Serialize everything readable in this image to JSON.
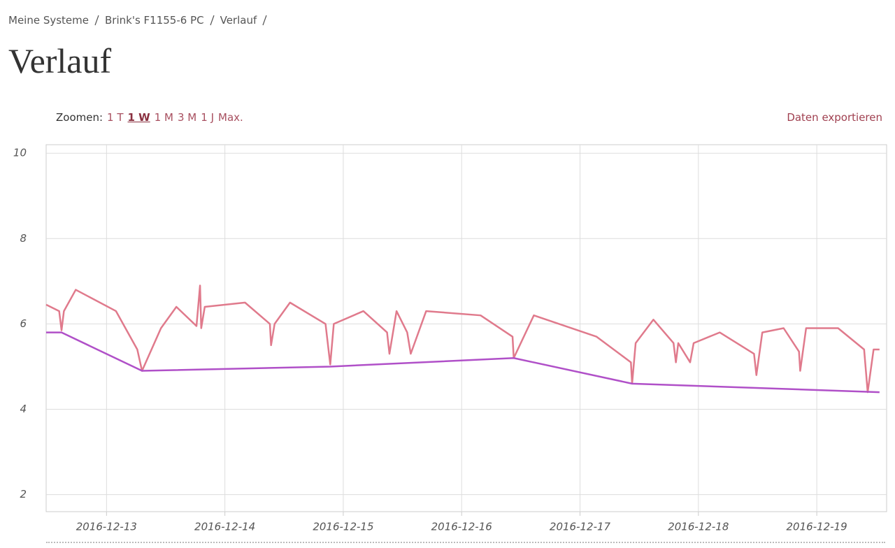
{
  "breadcrumb": [
    "Meine Systeme",
    "Brink's F1155-6 PC",
    "Verlauf"
  ],
  "title": "Verlauf",
  "zoom": {
    "label": "Zoomen:",
    "options": [
      "1 T",
      "1 W",
      "1 M",
      "3 M",
      "1 J",
      "Max."
    ],
    "active": 1
  },
  "export": "Daten exportieren",
  "chart_data": {
    "type": "line",
    "xlim": [
      12.49,
      19.59
    ],
    "xticks": [
      {
        "value": 13,
        "label": "2016-12-13"
      },
      {
        "value": 14,
        "label": "2016-12-14"
      },
      {
        "value": 15,
        "label": "2016-12-15"
      },
      {
        "value": 16,
        "label": "2016-12-16"
      },
      {
        "value": 17,
        "label": "2016-12-17"
      },
      {
        "value": 18,
        "label": "2016-12-18"
      },
      {
        "value": 19,
        "label": "2016-12-19"
      }
    ],
    "ylim": [
      1.6,
      10.2
    ],
    "yticks": [
      2,
      4,
      6,
      8,
      10
    ],
    "grid": true,
    "series": [
      {
        "color": "#e07a8c",
        "x": [
          12.49,
          12.6,
          12.62,
          12.64,
          12.74,
          13.08,
          13.26,
          13.3,
          13.46,
          13.59,
          13.76,
          13.79,
          13.8,
          13.83,
          14.17,
          14.38,
          14.39,
          14.42,
          14.55,
          14.85,
          14.89,
          14.92,
          15.17,
          15.37,
          15.39,
          15.45,
          15.54,
          15.57,
          15.7,
          16.16,
          16.43,
          16.44,
          16.61,
          17.14,
          17.43,
          17.44,
          17.47,
          17.62,
          17.79,
          17.81,
          17.83,
          17.93,
          17.96,
          18.18,
          18.47,
          18.49,
          18.54,
          18.72,
          18.85,
          18.86,
          18.91,
          19.18,
          19.4,
          19.43,
          19.48,
          19.53
        ],
        "values": [
          6.45,
          6.3,
          5.85,
          6.3,
          6.8,
          6.3,
          5.4,
          4.9,
          5.9,
          6.4,
          5.95,
          6.9,
          5.9,
          6.4,
          6.5,
          6.0,
          5.5,
          6.0,
          6.5,
          6.0,
          5.05,
          6.0,
          6.3,
          5.8,
          5.3,
          6.3,
          5.8,
          5.3,
          6.3,
          6.2,
          5.7,
          5.2,
          6.2,
          5.7,
          5.1,
          4.6,
          5.55,
          6.1,
          5.55,
          5.1,
          5.55,
          5.1,
          5.55,
          5.8,
          5.3,
          4.8,
          5.8,
          5.9,
          5.35,
          4.9,
          5.9,
          5.9,
          5.4,
          4.4,
          5.4,
          5.4
        ]
      },
      {
        "color": "#b050c8",
        "x": [
          12.49,
          12.62,
          13.3,
          14.89,
          16.44,
          17.44,
          19.53
        ],
        "values": [
          5.8,
          5.8,
          4.9,
          5.0,
          5.2,
          4.6,
          4.4
        ]
      }
    ]
  }
}
